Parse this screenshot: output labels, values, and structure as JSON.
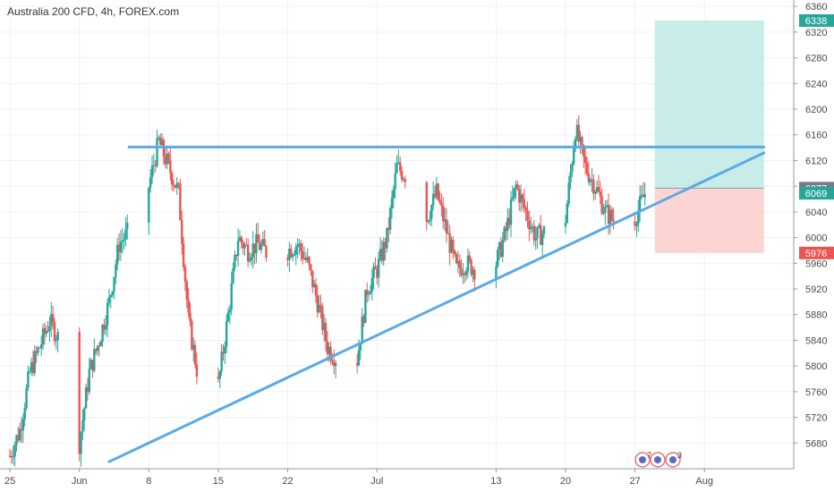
{
  "header": {
    "title": "Australia 200 CFD, 4h, FOREX.com"
  },
  "colors": {
    "up": "#26a69a",
    "down": "#ef5350",
    "grid": "#eef1f4",
    "trendline": "#5ba9e6",
    "profit_zone": "#c8ece8",
    "loss_zone": "#fbd5d3",
    "profit_badge": "#26a69a",
    "loss_badge": "#ef5350",
    "current_badge": "#26a69a",
    "entry_badge": "#787b86"
  },
  "badges": {
    "target": {
      "label": "6338",
      "value": 6338
    },
    "entry": {
      "label": "6077",
      "value": 6077
    },
    "current": {
      "label": "6069",
      "value": 6069
    },
    "stop": {
      "label": "5976",
      "value": 5976
    }
  },
  "event_markers": [
    {
      "icon": "flag-calendar-icon",
      "label": "7"
    },
    {
      "icon": "flag-calendar-icon",
      "label": ""
    },
    {
      "icon": "flag-calendar-icon",
      "label": "3"
    }
  ],
  "chart_data": {
    "type": "candlestick",
    "title": "Australia 200 CFD, 4h, FOREX.com",
    "ylim": [
      5640,
      6370
    ],
    "y_ticks": [
      5680,
      5720,
      5760,
      5800,
      5840,
      5880,
      5920,
      5960,
      6000,
      6040,
      6080,
      6120,
      6160,
      6200,
      6240,
      6280,
      6320,
      6360
    ],
    "x_ticks": [
      {
        "label": "25",
        "date": "2020-05-25"
      },
      {
        "label": "Jun",
        "date": "2020-06-01"
      },
      {
        "label": "8",
        "date": "2020-06-08"
      },
      {
        "label": "15",
        "date": "2020-06-15"
      },
      {
        "label": "22",
        "date": "2020-06-22"
      },
      {
        "label": "Jul",
        "date": "2020-07-01"
      },
      {
        "label": "13",
        "date": "2020-07-13"
      },
      {
        "label": "20",
        "date": "2020-07-20"
      },
      {
        "label": "27",
        "date": "2020-07-27"
      },
      {
        "label": "Aug",
        "date": "2020-08-03"
      }
    ],
    "xlim": [
      "2020-05-24",
      "2020-08-12"
    ],
    "price_path": [
      [
        "2020-05-25",
        5660
      ],
      [
        "2020-05-26",
        5700
      ],
      [
        "2020-05-27",
        5790
      ],
      [
        "2020-05-28",
        5830
      ],
      [
        "2020-05-29",
        5870
      ],
      [
        "2020-05-30",
        5840
      ],
      [
        "2020-06-01",
        5680
      ],
      [
        "2020-06-02",
        5790
      ],
      [
        "2020-06-03",
        5840
      ],
      [
        "2020-06-04",
        5900
      ],
      [
        "2020-06-05",
        5990
      ],
      [
        "2020-06-06",
        6010
      ],
      [
        "2020-06-08",
        6080
      ],
      [
        "2020-06-09",
        6150
      ],
      [
        "2020-06-10",
        6110
      ],
      [
        "2020-06-11",
        6070
      ],
      [
        "2020-06-12",
        5870
      ],
      [
        "2020-06-13",
        5780
      ],
      [
        "2020-06-15",
        5770
      ],
      [
        "2020-06-16",
        5880
      ],
      [
        "2020-06-17",
        6000
      ],
      [
        "2020-06-18",
        5980
      ],
      [
        "2020-06-19",
        5990
      ],
      [
        "2020-06-21",
        5960
      ],
      [
        "2020-06-22",
        5980
      ],
      [
        "2020-06-23",
        5990
      ],
      [
        "2020-06-24",
        5960
      ],
      [
        "2020-06-25",
        5900
      ],
      [
        "2020-06-26",
        5830
      ],
      [
        "2020-06-28",
        5790
      ],
      [
        "2020-06-29",
        5810
      ],
      [
        "2020-06-30",
        5920
      ],
      [
        "2020-07-01",
        5950
      ],
      [
        "2020-07-02",
        6000
      ],
      [
        "2020-07-03",
        6110
      ],
      [
        "2020-07-05",
        6080
      ],
      [
        "2020-07-06",
        6030
      ],
      [
        "2020-07-07",
        6070
      ],
      [
        "2020-07-08",
        6010
      ],
      [
        "2020-07-09",
        5950
      ],
      [
        "2020-07-10",
        5960
      ],
      [
        "2020-07-12",
        5940
      ],
      [
        "2020-07-13",
        5960
      ],
      [
        "2020-07-14",
        6010
      ],
      [
        "2020-07-15",
        6080
      ],
      [
        "2020-07-16",
        6040
      ],
      [
        "2020-07-17",
        6000
      ],
      [
        "2020-07-19",
        6020
      ],
      [
        "2020-07-20",
        6030
      ],
      [
        "2020-07-21",
        6170
      ],
      [
        "2020-07-22",
        6110
      ],
      [
        "2020-07-23",
        6080
      ],
      [
        "2020-07-24",
        6040
      ],
      [
        "2020-07-26",
        6010
      ],
      [
        "2020-07-27",
        6030
      ],
      [
        "2020-07-28",
        6069
      ]
    ],
    "horizontal_line": {
      "value": 6141,
      "from": "2020-06-06",
      "to": "2020-08-09"
    },
    "trendline": {
      "from": [
        "2020-06-04",
        5651
      ],
      "to": [
        "2020-08-09",
        6132
      ]
    },
    "position": {
      "from": "2020-07-29",
      "to": "2020-08-09",
      "entry": 6077,
      "target": 6338,
      "stop": 5976
    }
  }
}
